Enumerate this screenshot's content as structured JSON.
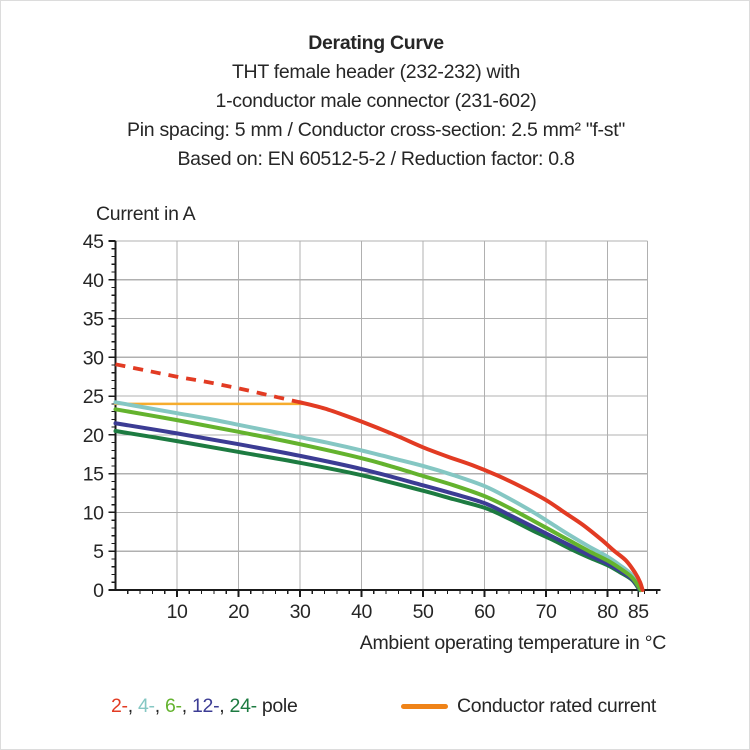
{
  "title": {
    "line1": "Derating Curve",
    "line2": "THT female header (232-232) with",
    "line3": "1-conductor male connector (231-602)",
    "line4": "Pin spacing: 5 mm / Conductor cross-section: 2.5 mm² \"f-st\"",
    "line5": "Based on: EN 60512-5-2 / Reduction factor: 0.8"
  },
  "axes": {
    "y_title": "Current in A",
    "x_title": "Ambient operating temperature in °C"
  },
  "legend": {
    "poles": [
      {
        "label": "2-",
        "color": "#e23b23"
      },
      {
        "label": "4-",
        "color": "#85c7c3"
      },
      {
        "label": "6-",
        "color": "#64b32e"
      },
      {
        "label": "12-",
        "color": "#3c3c94"
      },
      {
        "label": "24-",
        "color": "#1d7b41"
      }
    ],
    "separator": ", ",
    "suffix": "pole",
    "rated_label": "Conductor rated current",
    "rated_color": "#ef8318"
  },
  "chart_data": {
    "type": "line",
    "title": "Derating Curve",
    "xlabel": "Ambient operating temperature in °C",
    "ylabel": "Current in A",
    "xlim": [
      0,
      86.5
    ],
    "ylim": [
      0,
      45
    ],
    "x_ticks": [
      10,
      20,
      30,
      40,
      50,
      60,
      70,
      80,
      85
    ],
    "y_ticks": [
      0,
      5,
      10,
      15,
      20,
      25,
      30,
      35,
      40,
      45
    ],
    "x_minor_step": 2,
    "y_minor_step": 1,
    "x_gridlines": [
      10,
      20,
      30,
      40,
      50,
      60,
      70,
      80
    ],
    "y_gridlines": [
      5,
      10,
      15,
      20,
      25,
      30,
      35,
      40,
      45
    ],
    "grid_color": "#b0b0b0",
    "axis_color": "#1a1a1a",
    "grid": true,
    "legend_position": "bottom",
    "series": [
      {
        "name": "conductor-rated-current",
        "color": "#f6ac2d",
        "width": 2.6,
        "dash": null,
        "points": [
          [
            0,
            24
          ],
          [
            30.5,
            24
          ]
        ]
      },
      {
        "name": "2-pole-expected-dashed",
        "color": "#e23b23",
        "width": 3.8,
        "dash": "10 8",
        "points": [
          [
            0,
            29.1
          ],
          [
            5,
            28.3
          ],
          [
            10,
            27.5
          ],
          [
            15,
            26.8
          ],
          [
            20,
            26.0
          ],
          [
            25,
            25.1
          ],
          [
            30,
            24.2
          ]
        ]
      },
      {
        "name": "4-pole",
        "color": "#85c7c3",
        "width": 4,
        "dash": null,
        "points": [
          [
            0,
            24.2
          ],
          [
            5,
            23.5
          ],
          [
            10,
            22.8
          ],
          [
            15,
            22.1
          ],
          [
            20,
            21.3
          ],
          [
            25,
            20.5
          ],
          [
            30,
            19.7
          ],
          [
            35,
            18.9
          ],
          [
            40,
            18.0
          ],
          [
            45,
            17.0
          ],
          [
            50,
            16.0
          ],
          [
            55,
            14.8
          ],
          [
            60,
            13.4
          ],
          [
            64,
            11.8
          ],
          [
            68,
            10.0
          ],
          [
            71,
            8.5
          ],
          [
            74,
            7.0
          ],
          [
            77,
            5.6
          ],
          [
            80,
            4.3
          ],
          [
            82,
            3.2
          ],
          [
            84,
            1.9
          ],
          [
            85.4,
            0
          ]
        ]
      },
      {
        "name": "24-pole",
        "color": "#1d7b41",
        "width": 4,
        "dash": null,
        "points": [
          [
            0,
            20.5
          ],
          [
            10,
            19.2
          ],
          [
            20,
            17.8
          ],
          [
            30,
            16.4
          ],
          [
            40,
            14.8
          ],
          [
            50,
            12.8
          ],
          [
            55,
            11.7
          ],
          [
            60,
            10.6
          ],
          [
            64,
            9.2
          ],
          [
            68,
            7.6
          ],
          [
            71,
            6.5
          ],
          [
            74,
            5.3
          ],
          [
            77,
            4.2
          ],
          [
            80,
            3.2
          ],
          [
            82,
            2.3
          ],
          [
            84,
            1.3
          ],
          [
            85.2,
            0
          ]
        ]
      },
      {
        "name": "12-pole",
        "color": "#3c3c94",
        "width": 4,
        "dash": null,
        "points": [
          [
            0,
            21.5
          ],
          [
            10,
            20.2
          ],
          [
            20,
            18.8
          ],
          [
            30,
            17.3
          ],
          [
            40,
            15.6
          ],
          [
            50,
            13.5
          ],
          [
            55,
            12.4
          ],
          [
            60,
            11.2
          ],
          [
            64,
            9.7
          ],
          [
            68,
            8.1
          ],
          [
            71,
            6.9
          ],
          [
            74,
            5.7
          ],
          [
            77,
            4.5
          ],
          [
            80,
            3.4
          ],
          [
            82,
            2.5
          ],
          [
            84,
            1.4
          ],
          [
            85.3,
            0
          ]
        ]
      },
      {
        "name": "6-pole",
        "color": "#64b32e",
        "width": 4,
        "dash": null,
        "points": [
          [
            0,
            23.3
          ],
          [
            10,
            21.9
          ],
          [
            20,
            20.4
          ],
          [
            30,
            18.8
          ],
          [
            40,
            17.0
          ],
          [
            45,
            15.9
          ],
          [
            50,
            14.7
          ],
          [
            55,
            13.5
          ],
          [
            60,
            12.1
          ],
          [
            64,
            10.6
          ],
          [
            68,
            8.9
          ],
          [
            71,
            7.6
          ],
          [
            74,
            6.3
          ],
          [
            77,
            5.0
          ],
          [
            80,
            3.8
          ],
          [
            82,
            2.8
          ],
          [
            84,
            1.6
          ],
          [
            85.4,
            0
          ]
        ]
      },
      {
        "name": "2-pole",
        "color": "#e23b23",
        "width": 4,
        "dash": null,
        "points": [
          [
            30,
            24.2
          ],
          [
            34,
            23.4
          ],
          [
            38,
            22.3
          ],
          [
            42,
            21.1
          ],
          [
            46,
            19.8
          ],
          [
            50,
            18.4
          ],
          [
            54,
            17.2
          ],
          [
            58,
            16.1
          ],
          [
            62,
            14.8
          ],
          [
            66,
            13.3
          ],
          [
            70,
            11.6
          ],
          [
            73,
            10.0
          ],
          [
            76,
            8.4
          ],
          [
            79,
            6.5
          ],
          [
            81,
            5.1
          ],
          [
            83,
            3.8
          ],
          [
            84.5,
            2.2
          ],
          [
            85.3,
            1.0
          ],
          [
            85.7,
            0
          ]
        ]
      }
    ]
  }
}
